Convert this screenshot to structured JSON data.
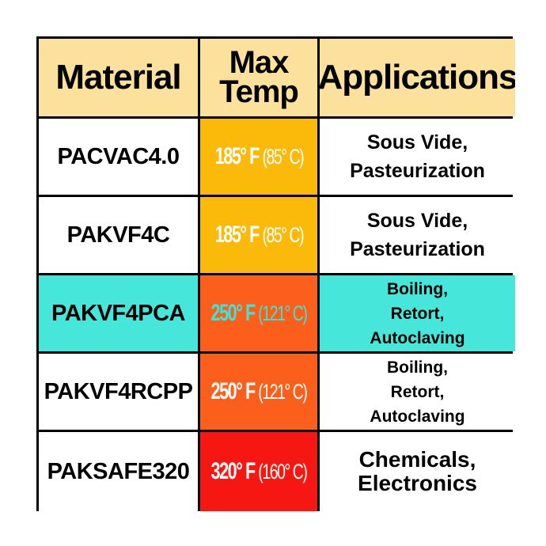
{
  "colors": {
    "header_bg": "#fbe19c",
    "white": "#ffffff",
    "highlight_row": "#46e6db",
    "temp_185": "#fbb90a",
    "temp_250": "#fc5f1c",
    "temp_320": "#f71712",
    "temp_text": "#ffffff",
    "temp_text_highlight": "#3fe3d6"
  },
  "header": {
    "material": "Material",
    "max_temp_line1": "Max",
    "max_temp_line2": "Temp",
    "applications": "Applications"
  },
  "rows": [
    {
      "material": "PACVAC4.0",
      "temp_f": "185° F",
      "temp_c": "(85° C)",
      "app_line1": "Sous Vide,",
      "app_line2": "Pasteurization",
      "app_line3": ""
    },
    {
      "material": "PAKVF4C",
      "temp_f": "185° F",
      "temp_c": "(85° C)",
      "app_line1": "Sous Vide,",
      "app_line2": "Pasteurization",
      "app_line3": ""
    },
    {
      "material": "PAKVF4PCA",
      "temp_f": "250° F",
      "temp_c": "(121° C)",
      "app_line1": "Boiling,",
      "app_line2": "Retort,",
      "app_line3": "Autoclaving"
    },
    {
      "material": "PAKVF4RCPP",
      "temp_f": "250° F",
      "temp_c": "(121° C)",
      "app_line1": "Boiling,",
      "app_line2": "Retort,",
      "app_line3": "Autoclaving"
    },
    {
      "material": "PAKSAFE320",
      "temp_f": "320° F",
      "temp_c": "(160° C)",
      "app_line1": "Chemicals,",
      "app_line2": "Electronics",
      "app_line3": ""
    }
  ]
}
